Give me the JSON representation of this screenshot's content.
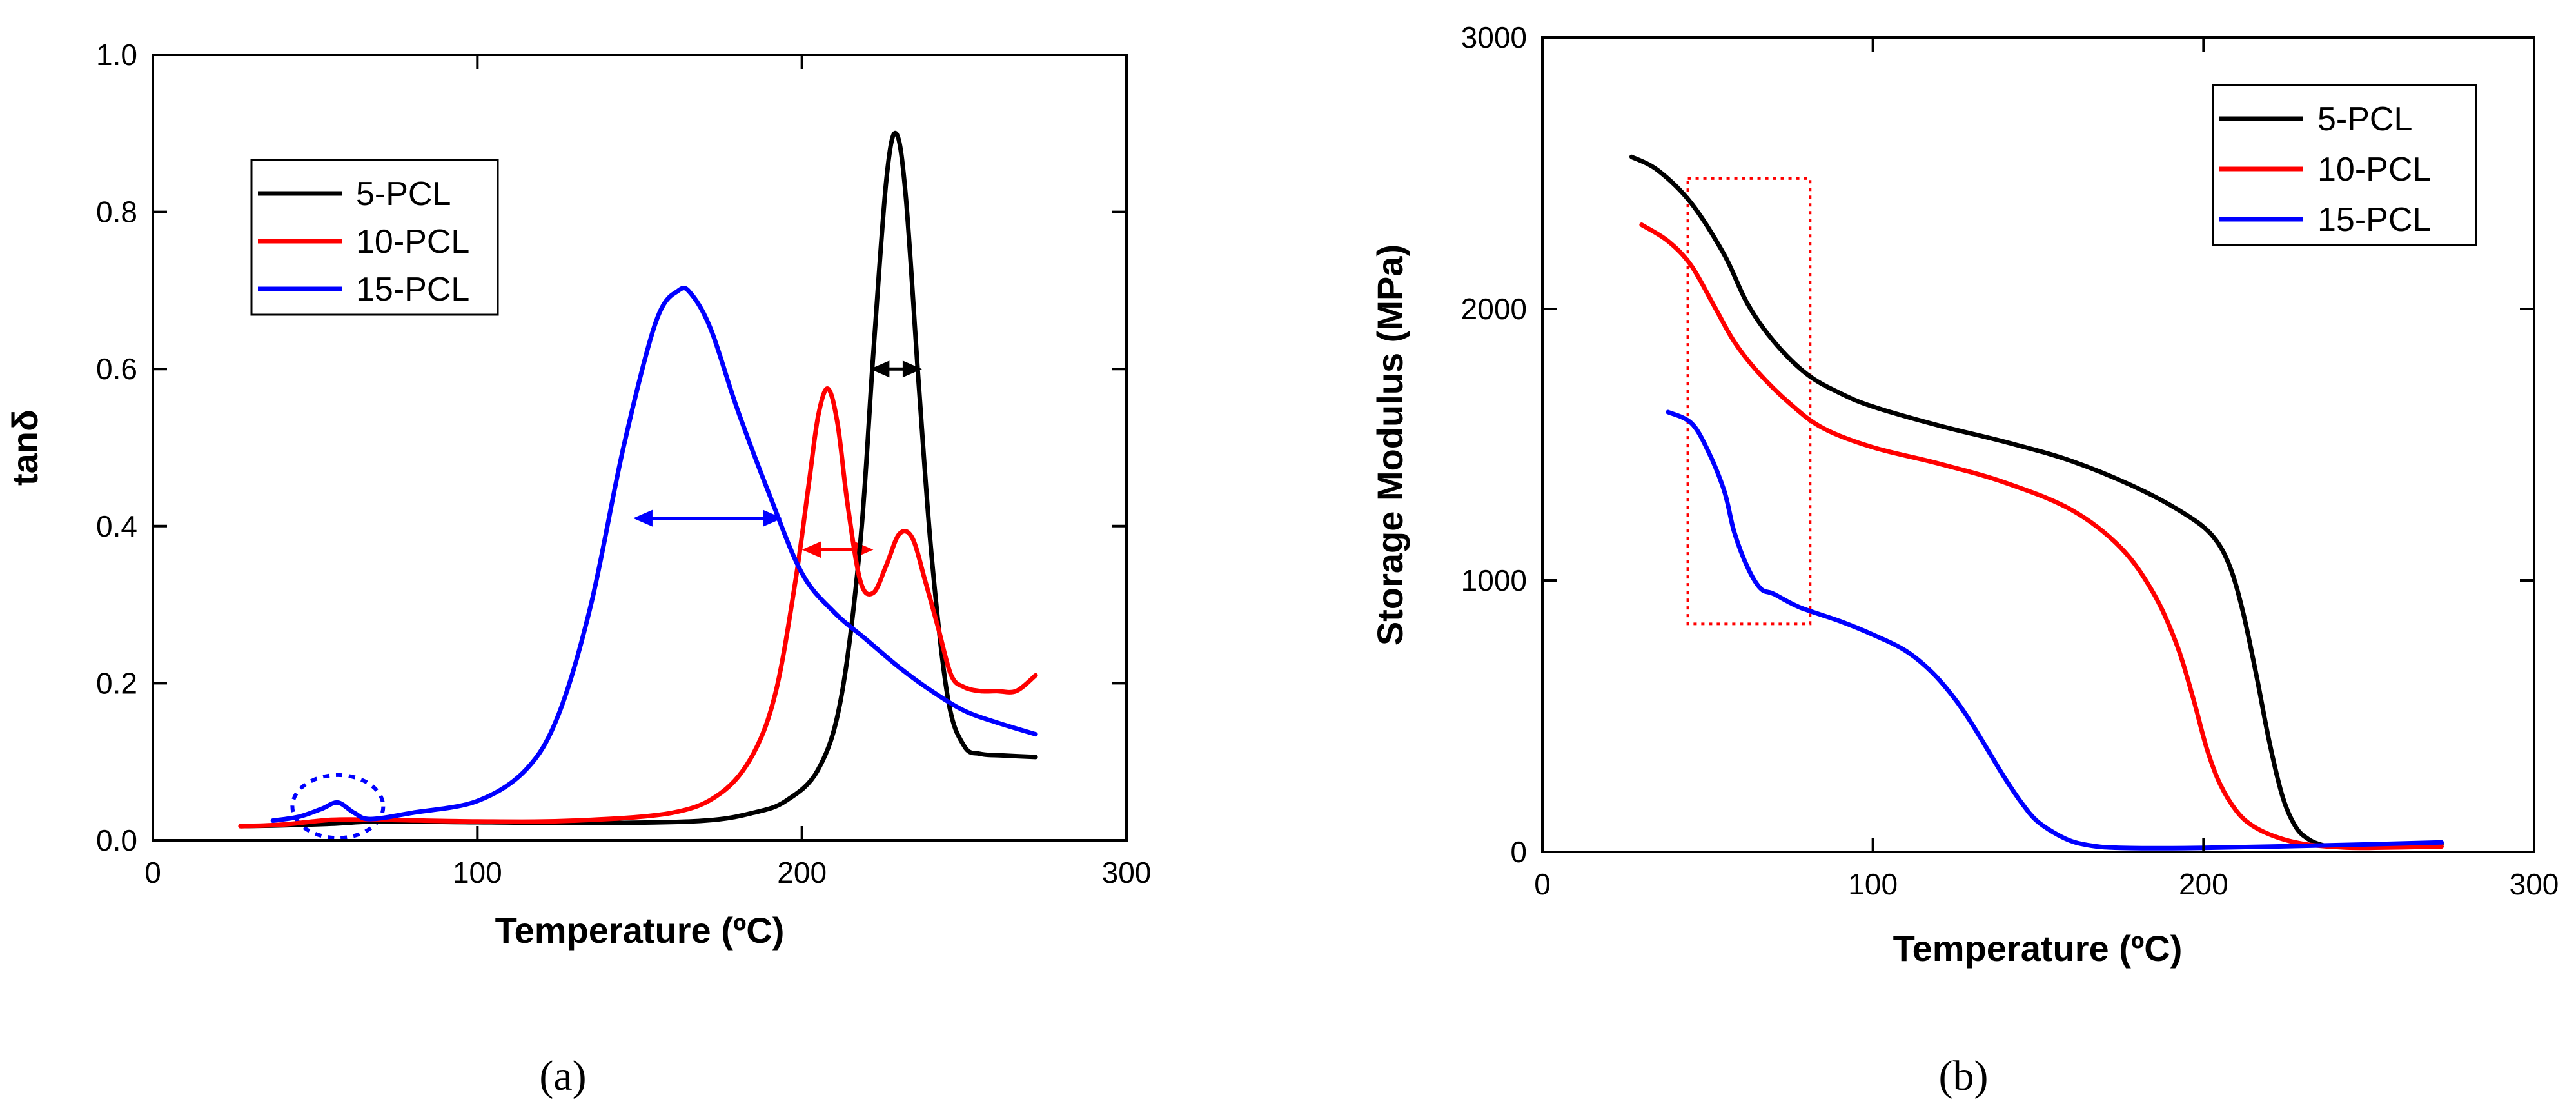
{
  "chart_data": [
    {
      "type": "line",
      "panel_label": "(a)",
      "title": "",
      "xlabel": "Temperature (ºC)",
      "ylabel": "tanδ",
      "xlim": [
        0,
        300
      ],
      "ylim": [
        0,
        1.0
      ],
      "x_ticks": [
        "0",
        "100",
        "200",
        "300"
      ],
      "x_tick_values": [
        0,
        100,
        200,
        300
      ],
      "y_ticks": [
        "0.0",
        "0.2",
        "0.4",
        "0.6",
        "0.8",
        "1.0"
      ],
      "y_tick_values": [
        0,
        0.2,
        0.4,
        0.6,
        0.8,
        1.0
      ],
      "legend_position": "upper-left",
      "series": [
        {
          "name": "5-PCL",
          "color": "#000000",
          "x": [
            27,
            40,
            55,
            70,
            100,
            140,
            170,
            185,
            195,
            205,
            212,
            218,
            222,
            226,
            229,
            232,
            236,
            240,
            245,
            250,
            255,
            262,
            272
          ],
          "y": [
            0.018,
            0.019,
            0.021,
            0.024,
            0.023,
            0.022,
            0.025,
            0.035,
            0.05,
            0.09,
            0.18,
            0.38,
            0.62,
            0.84,
            0.9,
            0.82,
            0.58,
            0.36,
            0.18,
            0.12,
            0.11,
            0.108,
            0.106
          ]
        },
        {
          "name": "10-PCL",
          "color": "#ff0000",
          "x": [
            27,
            40,
            55,
            70,
            100,
            130,
            160,
            175,
            185,
            192,
            198,
            202,
            205,
            208,
            211,
            214,
            218,
            222,
            226,
            230,
            234,
            238,
            242,
            246,
            250,
            255,
            260,
            266,
            272
          ],
          "y": [
            0.018,
            0.02,
            0.026,
            0.026,
            0.024,
            0.025,
            0.035,
            0.06,
            0.11,
            0.19,
            0.33,
            0.45,
            0.54,
            0.575,
            0.53,
            0.43,
            0.33,
            0.315,
            0.35,
            0.39,
            0.385,
            0.33,
            0.27,
            0.21,
            0.195,
            0.19,
            0.19,
            0.19,
            0.21
          ]
        },
        {
          "name": "15-PCL",
          "color": "#0000ff",
          "x": [
            37,
            45,
            52,
            57,
            62,
            67,
            80,
            100,
            115,
            125,
            135,
            145,
            155,
            162,
            166,
            172,
            180,
            190,
            200,
            210,
            220,
            230,
            240,
            250,
            260,
            272
          ],
          "y": [
            0.025,
            0.03,
            0.04,
            0.048,
            0.035,
            0.027,
            0.035,
            0.05,
            0.09,
            0.16,
            0.3,
            0.5,
            0.66,
            0.7,
            0.695,
            0.65,
            0.55,
            0.44,
            0.34,
            0.29,
            0.255,
            0.22,
            0.19,
            0.165,
            0.15,
            0.135
          ]
        }
      ],
      "annotations": [
        {
          "type": "double-arrow",
          "color": "#0000ff",
          "x_from": 148,
          "x_to": 194,
          "y": 0.41
        },
        {
          "type": "double-arrow",
          "color": "#ff0000",
          "x_from": 200,
          "x_to": 222,
          "y": 0.37
        },
        {
          "type": "double-arrow",
          "color": "#000000",
          "x_from": 221,
          "x_to": 237,
          "y": 0.6
        },
        {
          "type": "dotted-circle",
          "color": "#0000ff",
          "x_center": 57,
          "y_center": 0.043,
          "x_radius": 14,
          "y_radius": 0.04
        }
      ]
    },
    {
      "type": "line",
      "panel_label": "(b)",
      "title": "",
      "xlabel": "Temperature (ºC)",
      "ylabel": "Storage Modulus (MPa)",
      "xlim": [
        0,
        300
      ],
      "ylim": [
        0,
        3000
      ],
      "x_ticks": [
        "0",
        "100",
        "200",
        "300"
      ],
      "x_tick_values": [
        0,
        100,
        200,
        300
      ],
      "y_ticks": [
        "0",
        "1000",
        "2000",
        "3000"
      ],
      "y_tick_values": [
        0,
        1000,
        2000,
        3000
      ],
      "legend_position": "upper-right",
      "series": [
        {
          "name": "5-PCL",
          "color": "#000000",
          "x": [
            27,
            35,
            45,
            55,
            62,
            70,
            80,
            90,
            100,
            120,
            140,
            160,
            180,
            195,
            203,
            208,
            212,
            216,
            220,
            224,
            228,
            232,
            236,
            240,
            250,
            272
          ],
          "y": [
            2560,
            2510,
            2390,
            2200,
            2020,
            1880,
            1760,
            1690,
            1640,
            1570,
            1510,
            1440,
            1340,
            1240,
            1160,
            1050,
            880,
            650,
            400,
            200,
            90,
            45,
            25,
            20,
            20,
            30
          ]
        },
        {
          "name": "10-PCL",
          "color": "#ff0000",
          "x": [
            30,
            38,
            45,
            52,
            58,
            65,
            75,
            85,
            100,
            120,
            140,
            160,
            175,
            185,
            192,
            197,
            201,
            205,
            210,
            215,
            222,
            230,
            240,
            250,
            272
          ],
          "y": [
            2310,
            2250,
            2160,
            2010,
            1880,
            1770,
            1650,
            1560,
            1490,
            1430,
            1360,
            1260,
            1120,
            950,
            760,
            560,
            380,
            250,
            150,
            95,
            55,
            30,
            18,
            15,
            20
          ]
        },
        {
          "name": "15-PCL",
          "color": "#0000ff",
          "x": [
            38,
            45,
            50,
            55,
            58,
            62,
            66,
            70,
            78,
            90,
            100,
            110,
            118,
            125,
            130,
            135,
            140,
            145,
            150,
            158,
            165,
            175,
            200,
            240,
            272
          ],
          "y": [
            1620,
            1580,
            1480,
            1330,
            1180,
            1050,
            970,
            950,
            900,
            850,
            800,
            740,
            660,
            560,
            470,
            370,
            270,
            180,
            110,
            50,
            25,
            15,
            15,
            25,
            35
          ]
        }
      ],
      "annotations": [
        {
          "type": "dotted-rectangle",
          "color": "#ff0000",
          "x_from": 44,
          "x_to": 81,
          "y_from": 840,
          "y_to": 2480
        }
      ]
    }
  ]
}
